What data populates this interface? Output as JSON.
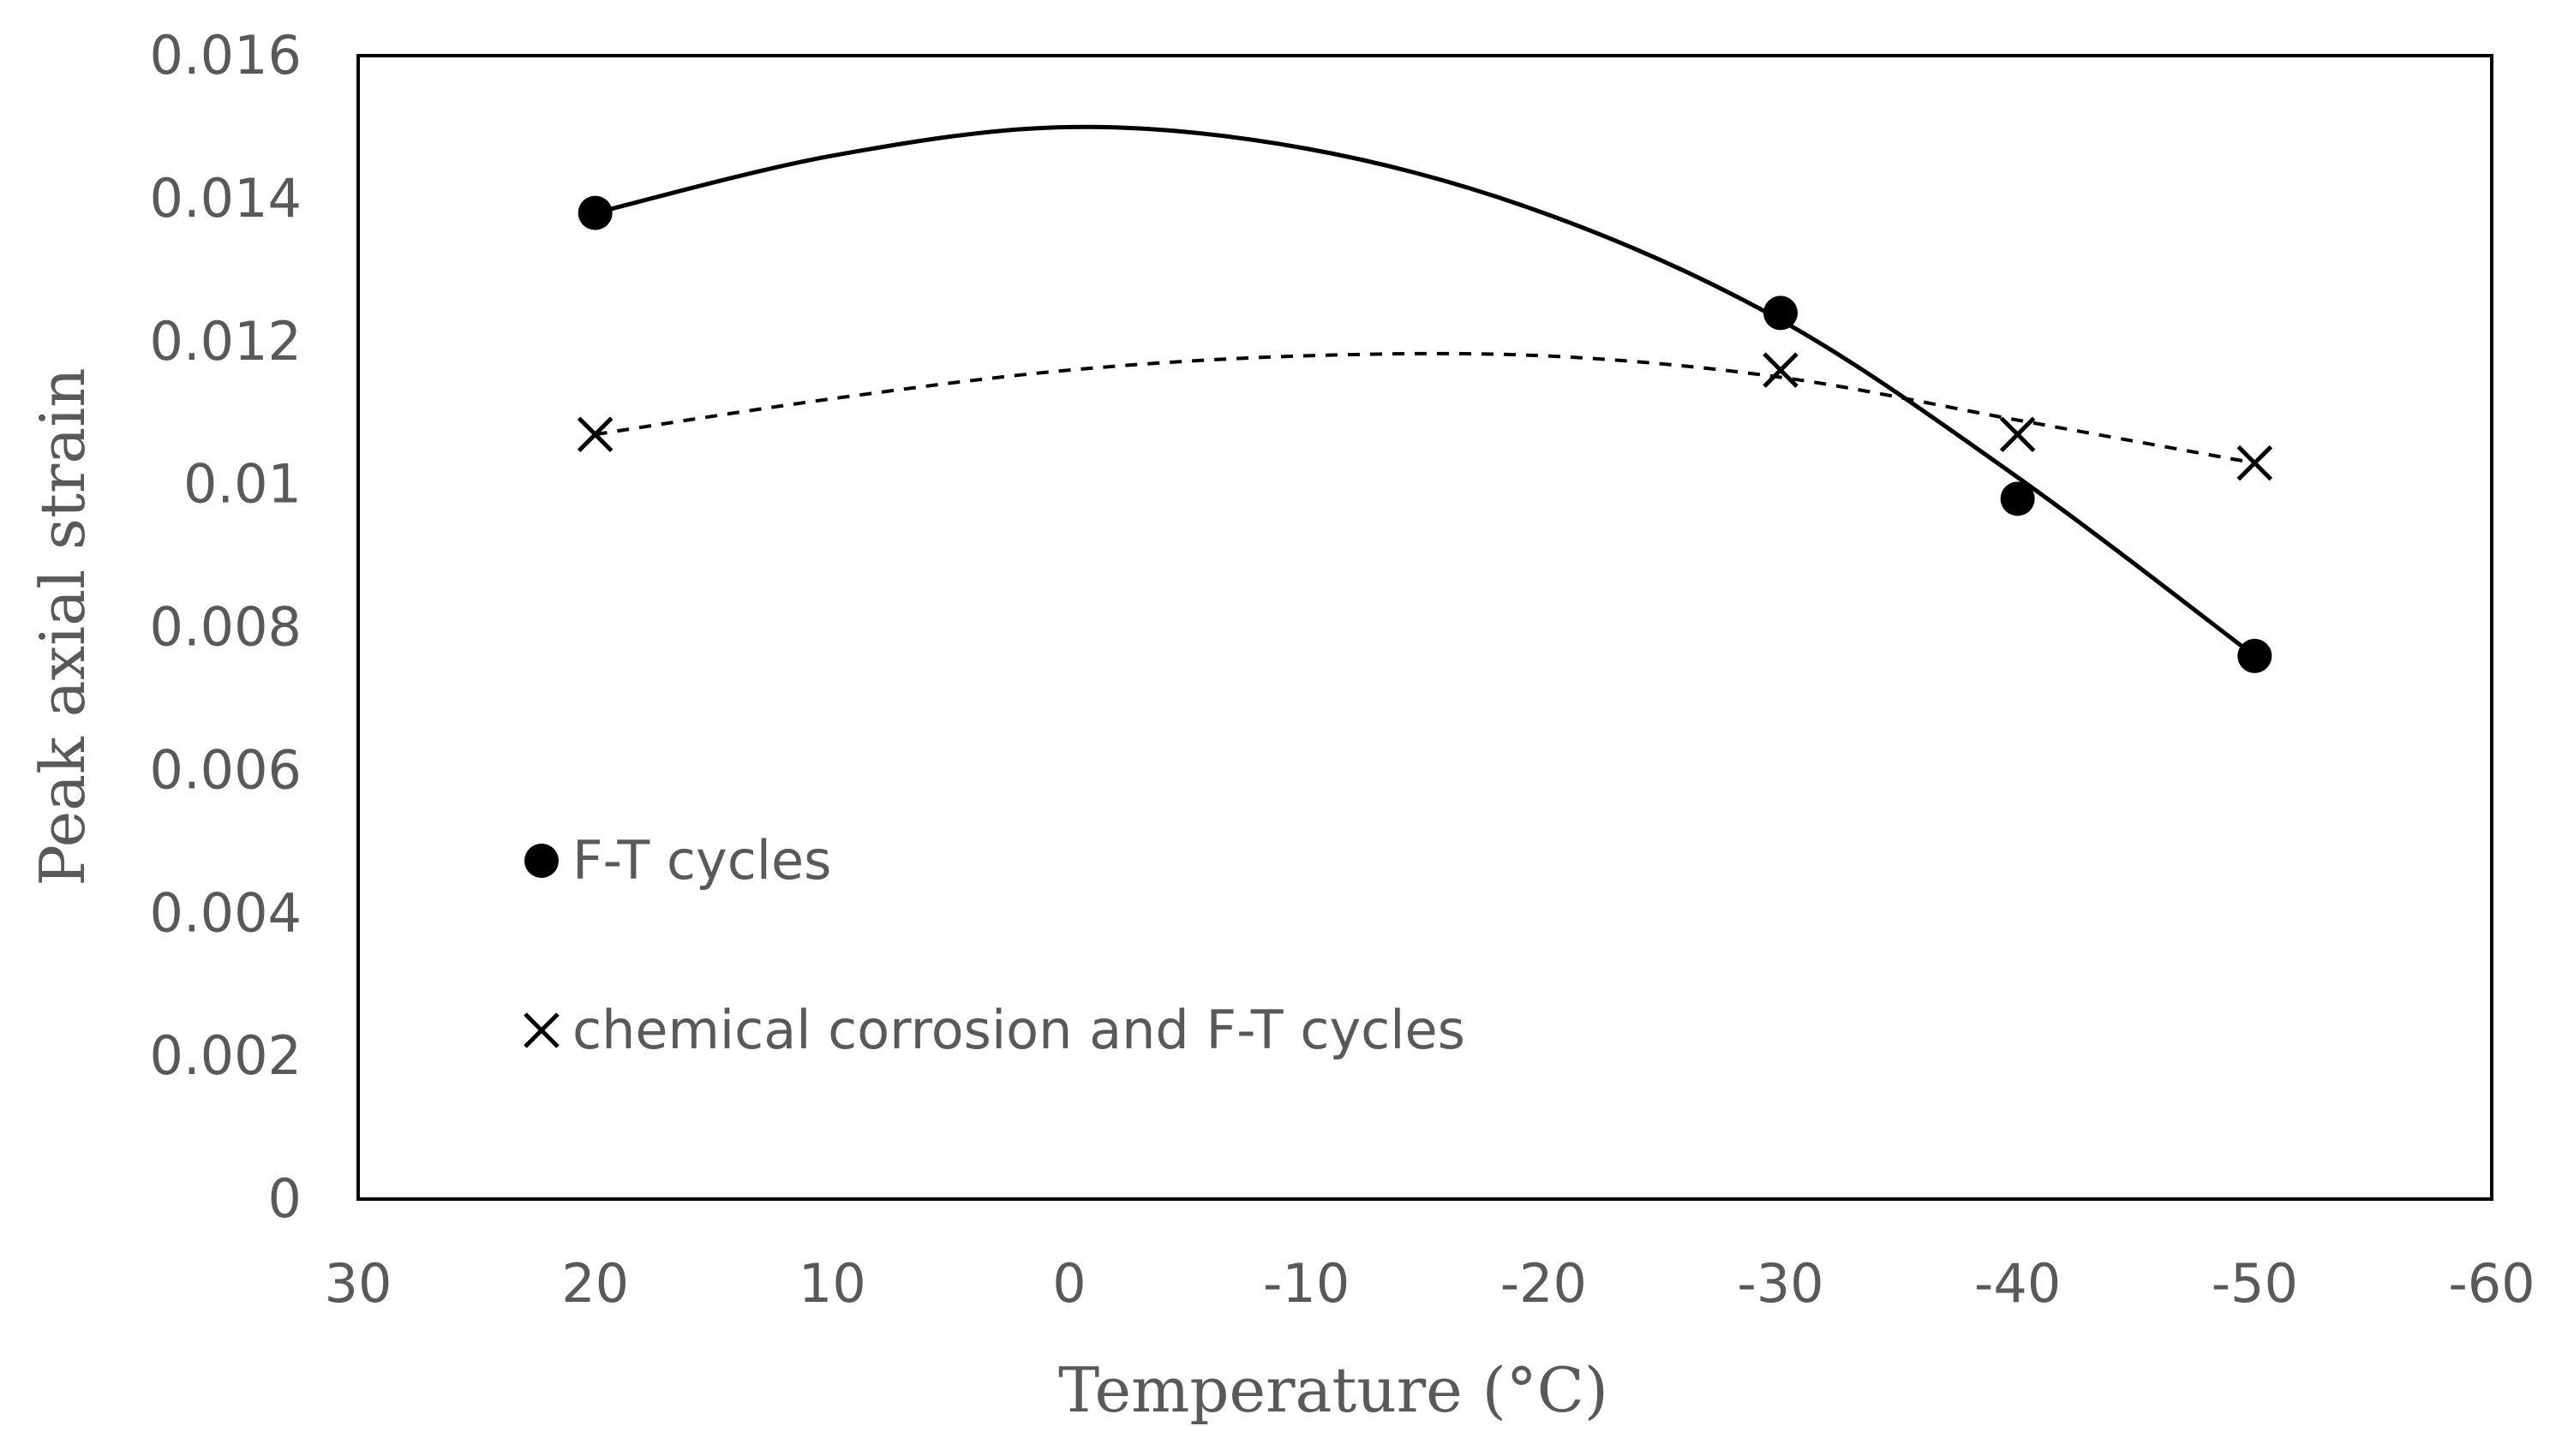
{
  "chart_data": {
    "type": "scatter",
    "title": "",
    "xlabel": "Temperature (°C)",
    "ylabel": "Peak axial strain",
    "xlim": [
      30,
      -60
    ],
    "ylim": [
      0,
      0.016
    ],
    "x_ticks": [
      30,
      20,
      10,
      0,
      -10,
      -20,
      -30,
      -40,
      -50,
      -60
    ],
    "x_tick_labels": [
      "30",
      "20",
      "10",
      "0",
      "-10",
      "-20",
      "-30",
      "-40",
      "-50",
      "-60"
    ],
    "y_ticks": [
      0,
      0.002,
      0.004,
      0.006,
      0.008,
      0.01,
      0.012,
      0.014,
      0.016
    ],
    "y_tick_labels": [
      "0",
      "0.002",
      "0.004",
      "0.006",
      "0.008",
      "0.01",
      "0.012",
      "0.014",
      "0.016"
    ],
    "grid": false,
    "legend_position": "left",
    "series": [
      {
        "name": "F-T cycles",
        "marker": "filled-circle",
        "x": [
          20,
          -30,
          -40,
          -50
        ],
        "values": [
          0.0138,
          0.0124,
          0.0098,
          0.0076
        ],
        "trendline": "solid polynomial",
        "trend_points": [
          [
            20,
            0.0138
          ],
          [
            10,
            0.0146
          ],
          [
            0,
            0.015
          ],
          [
            -10,
            0.0147
          ],
          [
            -20,
            0.0138
          ],
          [
            -30,
            0.0123
          ],
          [
            -40,
            0.0101
          ],
          [
            -50,
            0.0076
          ]
        ]
      },
      {
        "name": "chemical corrosion and F-T cycles",
        "marker": "x",
        "x": [
          20,
          -30,
          -40,
          -50
        ],
        "values": [
          0.0107,
          0.0116,
          0.0107,
          0.0103
        ],
        "trendline": "dashed polynomial",
        "trend_points": [
          [
            20,
            0.0107
          ],
          [
            10,
            0.0112
          ],
          [
            0,
            0.0116
          ],
          [
            -10,
            0.0118
          ],
          [
            -20,
            0.0118
          ],
          [
            -30,
            0.0115
          ],
          [
            -40,
            0.0109
          ],
          [
            -50,
            0.0103
          ]
        ]
      }
    ],
    "colors": {
      "plot": "#000000",
      "text": "#595959"
    }
  }
}
